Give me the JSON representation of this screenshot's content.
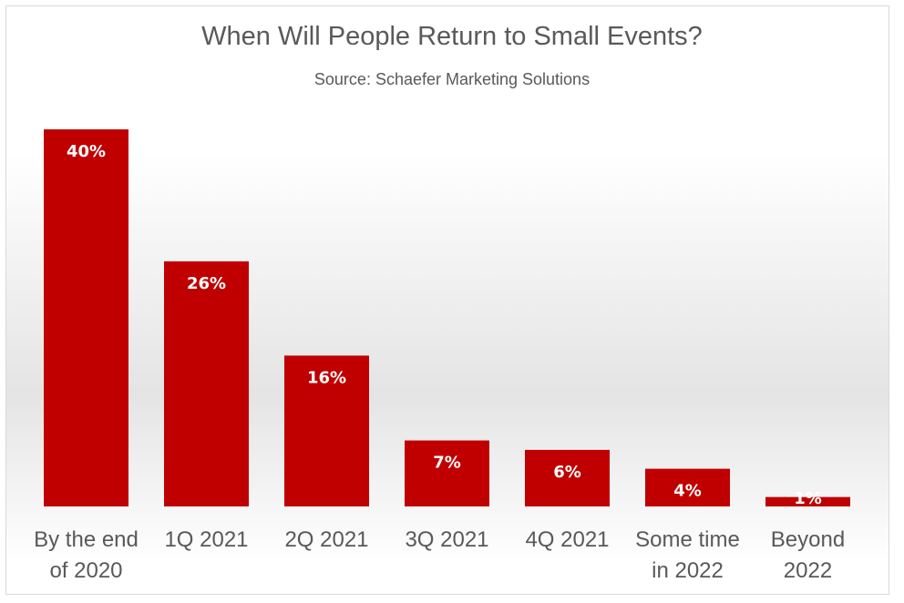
{
  "chart_data": {
    "type": "bar",
    "title": "When Will People Return to Small Events?",
    "subtitle": "Source: Schaefer Marketing Solutions",
    "categories": [
      [
        "By the end",
        "of 2020"
      ],
      [
        "1Q 2021"
      ],
      [
        "2Q 2021"
      ],
      [
        "3Q 2021"
      ],
      [
        "4Q 2021"
      ],
      [
        "Some time",
        "in 2022"
      ],
      [
        "Beyond",
        "2022"
      ]
    ],
    "values": [
      40,
      26,
      16,
      7,
      6,
      4,
      1
    ],
    "data_labels": [
      "40%",
      "26%",
      "16%",
      "7%",
      "6%",
      "4%",
      "1%"
    ],
    "xlabel": "",
    "ylabel": "",
    "ylim": [
      0,
      40
    ],
    "grid": false,
    "legend": "none",
    "bar_color": "#C00000"
  }
}
